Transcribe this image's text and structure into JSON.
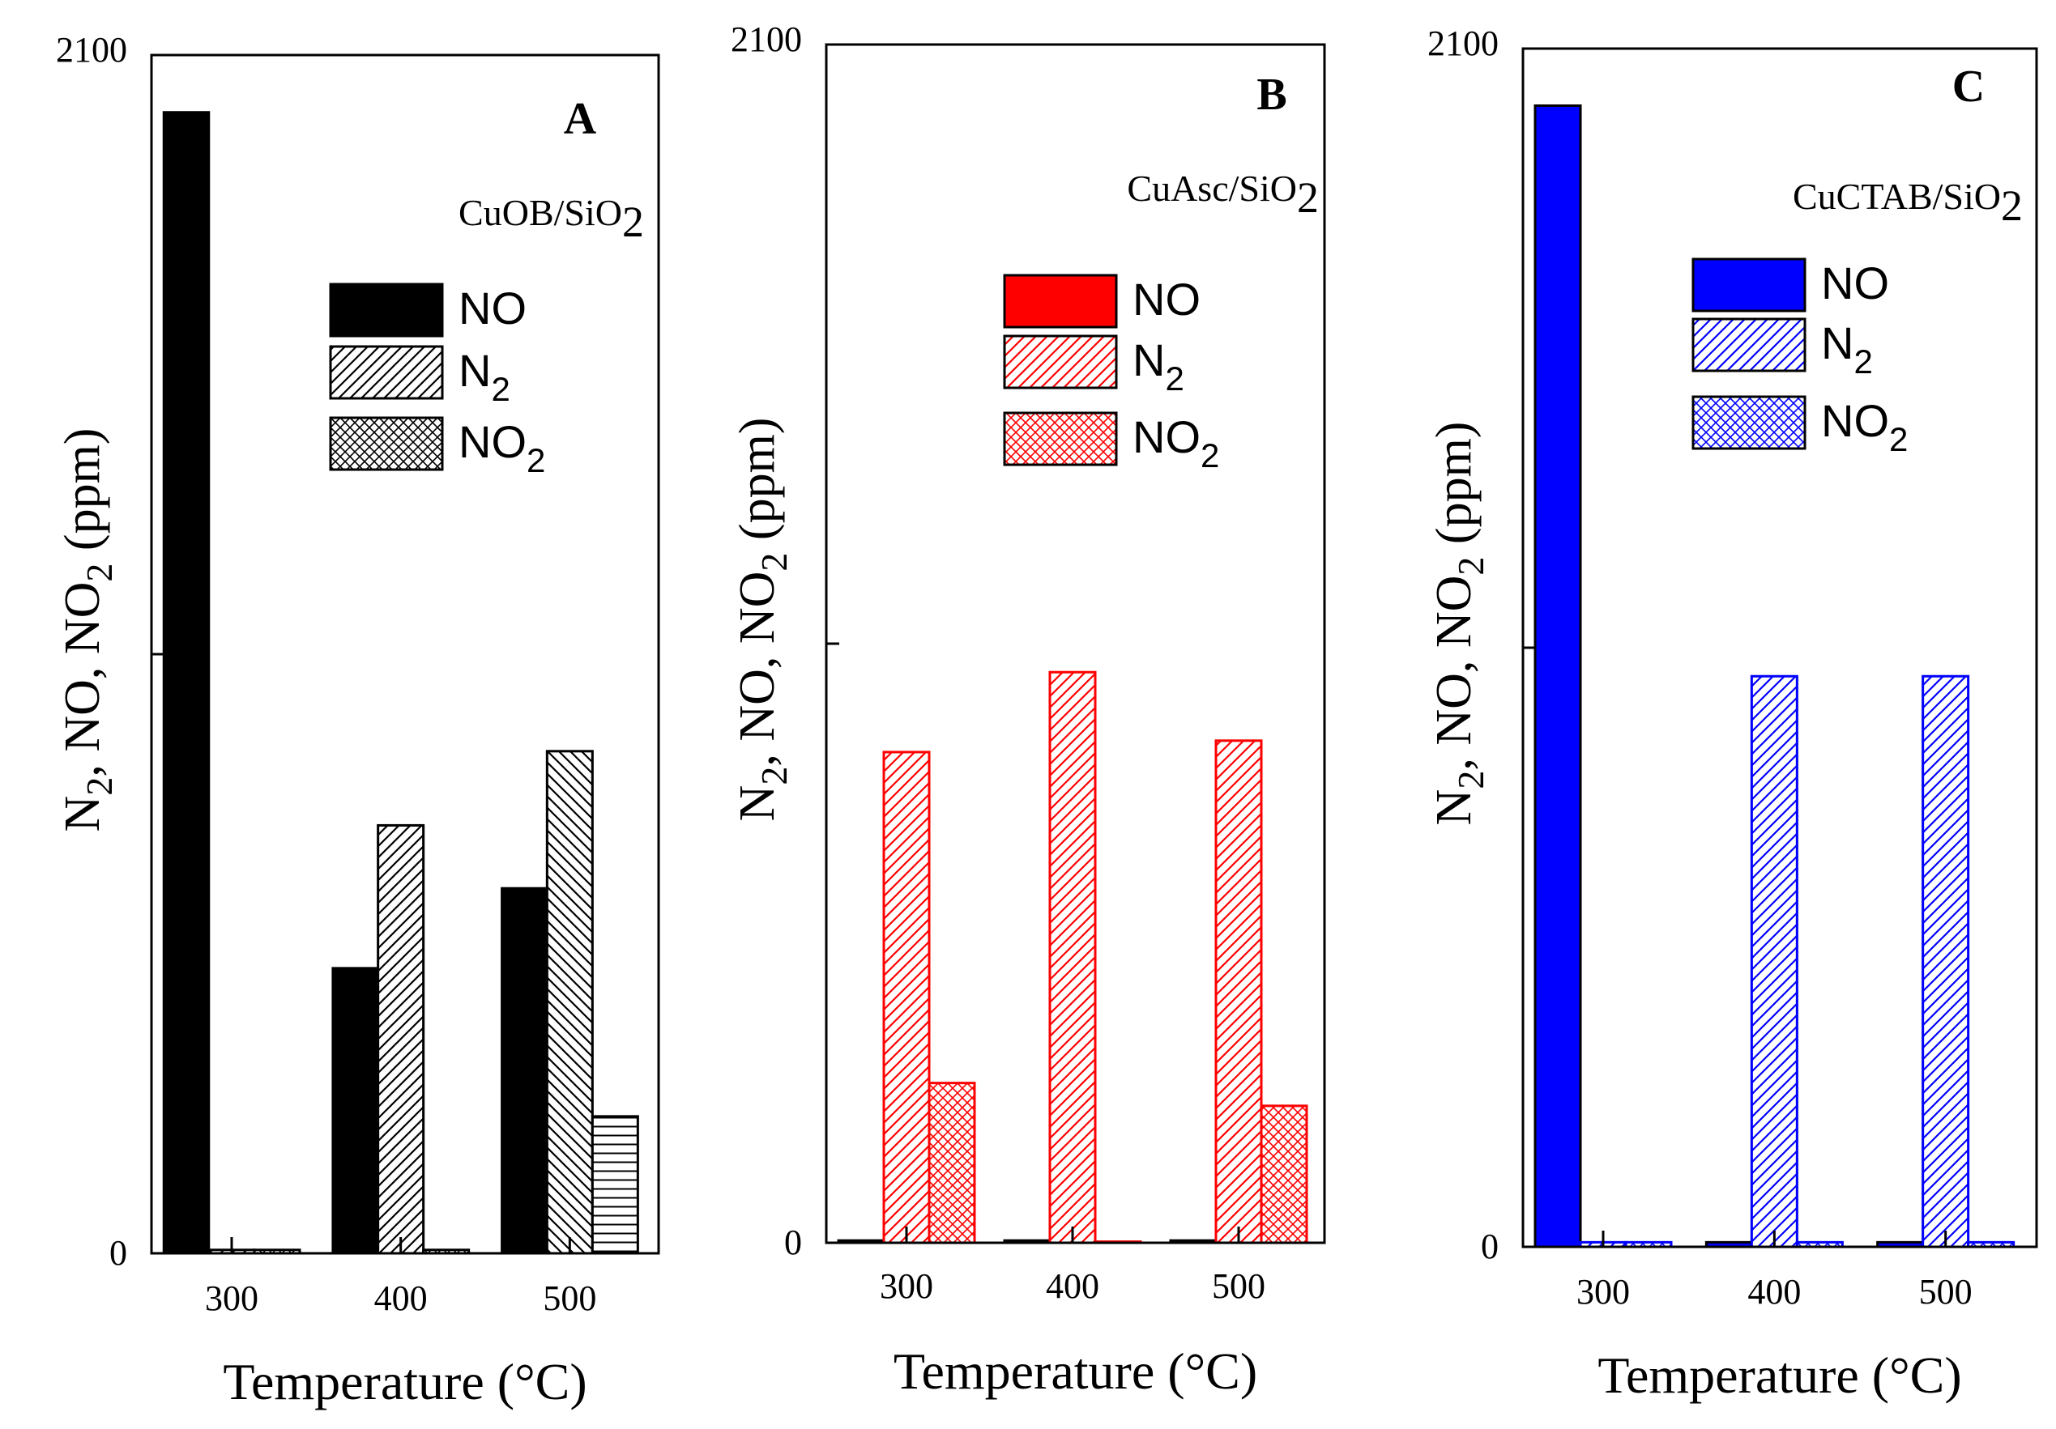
{
  "chart_data": [
    {
      "panel": "A",
      "type": "bar",
      "subtitle": "CuOB/SiO",
      "subtitle_sub": "2",
      "xlabel": "Temperature (°C)",
      "ylabel_parts": [
        "N",
        "2",
        ", NO, NO",
        "2",
        " (ppm)"
      ],
      "ylim": [
        0,
        2100
      ],
      "y_ticks": [
        0,
        2100
      ],
      "y_tick_labels": [
        "0",
        "2100"
      ],
      "categories": [
        "300",
        "400",
        "500"
      ],
      "color": "#000000",
      "legend": [
        {
          "label": "NO",
          "sub": "",
          "pattern": "solid"
        },
        {
          "label": "N",
          "sub": "2",
          "pattern": "diag"
        },
        {
          "label": "NO",
          "sub": "2",
          "pattern": "cross"
        }
      ],
      "series": [
        {
          "name": "NO",
          "pattern": "solid",
          "values": [
            2000,
            500,
            640
          ]
        },
        {
          "name": "N2",
          "pattern": "diag",
          "values": [
            6,
            750,
            880
          ]
        },
        {
          "name": "NO2",
          "pattern": "cross",
          "values": [
            6,
            6,
            240
          ]
        }
      ],
      "bar_patterns": [
        [
          "solid",
          "diag",
          "cross"
        ],
        [
          "solid",
          "diag",
          "cross"
        ],
        [
          "solid",
          "backdiag",
          "hlines"
        ]
      ]
    },
    {
      "panel": "B",
      "type": "bar",
      "subtitle": "CuAsc/SiO",
      "subtitle_sub": "2",
      "xlabel": "Temperature (°C)",
      "ylabel_parts": [
        "N",
        "2",
        ", NO, NO",
        "2",
        " (ppm)"
      ],
      "ylim": [
        0,
        2100
      ],
      "y_ticks": [
        0,
        2100
      ],
      "y_tick_labels": [
        "0",
        "2100"
      ],
      "categories": [
        "300",
        "400",
        "500"
      ],
      "color": "#ff0000",
      "legend": [
        {
          "label": "NO",
          "sub": "",
          "pattern": "solid"
        },
        {
          "label": "N",
          "sub": "2",
          "pattern": "diag"
        },
        {
          "label": "NO",
          "sub": "2",
          "pattern": "cross"
        }
      ],
      "series": [
        {
          "name": "NO",
          "pattern": "solid",
          "values": [
            4,
            4,
            4
          ]
        },
        {
          "name": "N2",
          "pattern": "diag",
          "values": [
            860,
            1000,
            880
          ]
        },
        {
          "name": "NO2",
          "pattern": "cross",
          "values": [
            280,
            2,
            240
          ]
        }
      ],
      "bar_patterns": [
        [
          "solid",
          "diag",
          "cross"
        ],
        [
          "solid",
          "diag",
          "cross"
        ],
        [
          "solid",
          "diag",
          "cross"
        ]
      ]
    },
    {
      "panel": "C",
      "type": "bar",
      "subtitle": "CuCTAB/SiO",
      "subtitle_sub": "2",
      "xlabel": "Temperature (°C)",
      "ylabel_parts": [
        "N",
        "2",
        ", NO, NO",
        "2",
        " (ppm)"
      ],
      "ylim": [
        0,
        2100
      ],
      "y_ticks": [
        0,
        2100
      ],
      "y_tick_labels": [
        "0",
        "2100"
      ],
      "categories": [
        "300",
        "400",
        "500"
      ],
      "color": "#0000ff",
      "legend": [
        {
          "label": "NO",
          "sub": "",
          "pattern": "solid"
        },
        {
          "label": "N",
          "sub": "2",
          "pattern": "diag"
        },
        {
          "label": "NO",
          "sub": "2",
          "pattern": "cross"
        }
      ],
      "series": [
        {
          "name": "NO",
          "pattern": "solid",
          "values": [
            2000,
            8,
            8
          ]
        },
        {
          "name": "N2",
          "pattern": "diag",
          "values": [
            8,
            1000,
            1000
          ]
        },
        {
          "name": "NO2",
          "pattern": "cross",
          "values": [
            8,
            8,
            8
          ]
        }
      ],
      "bar_patterns": [
        [
          "solid",
          "diag",
          "cross"
        ],
        [
          "solid",
          "diag",
          "cross"
        ],
        [
          "solid",
          "diag",
          "cross"
        ]
      ]
    }
  ]
}
